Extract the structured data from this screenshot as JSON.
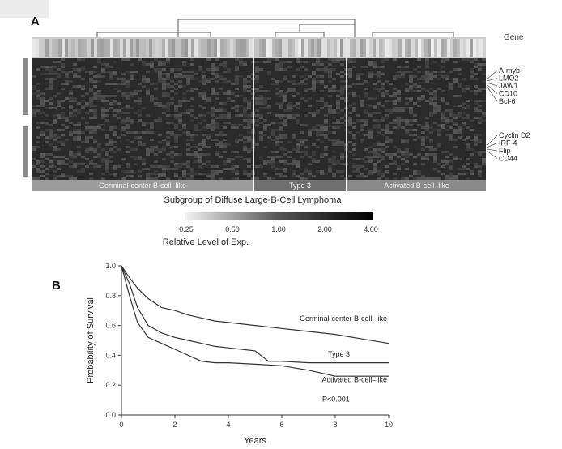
{
  "panel_a": {
    "label": "A",
    "gene_header": "Gene",
    "genes_upper": [
      "A-myb",
      "LMO2",
      "JAW1",
      "CD10",
      "Bcl-6"
    ],
    "genes_lower": [
      "Cyclin D2",
      "IRF-4",
      "Flip",
      "CD44"
    ],
    "subgroups": [
      {
        "label": "Germinal-center B-cell–like"
      },
      {
        "label": "Type 3"
      },
      {
        "label": "Activated B-cell–like"
      }
    ],
    "subgroup_title": "Subgroup of Diffuse Large-B-Cell Lymphoma",
    "colorbar": {
      "ticks": [
        "0.25",
        "0.50",
        "1.00",
        "2.00",
        "4.00"
      ],
      "title": "Relative Level of Exp."
    }
  },
  "chart_data": {
    "type": "line",
    "panel_label": "B",
    "xlabel": "Years",
    "ylabel": "Probability of Survival",
    "xlim": [
      0,
      10
    ],
    "ylim": [
      0,
      1.0
    ],
    "xticks": [
      0,
      2,
      4,
      6,
      8,
      10
    ],
    "yticks": [
      0.0,
      0.2,
      0.4,
      0.6,
      0.8,
      1.0
    ],
    "grid": false,
    "annotation": "P<0.001",
    "series": [
      {
        "name": "Germinal-center B-cell–like",
        "x": [
          0,
          0.3,
          0.6,
          1,
          1.5,
          2,
          2.5,
          3,
          3.5,
          4,
          5,
          6,
          7,
          8,
          9,
          10
        ],
        "y": [
          1.0,
          0.92,
          0.85,
          0.78,
          0.72,
          0.7,
          0.67,
          0.65,
          0.63,
          0.62,
          0.6,
          0.58,
          0.56,
          0.54,
          0.51,
          0.48
        ]
      },
      {
        "name": "Type 3",
        "x": [
          0,
          0.3,
          0.6,
          1,
          1.5,
          2,
          2.5,
          3,
          3.5,
          4,
          5,
          5.5,
          6,
          7,
          8,
          9,
          10
        ],
        "y": [
          1.0,
          0.88,
          0.72,
          0.6,
          0.55,
          0.52,
          0.5,
          0.48,
          0.46,
          0.45,
          0.43,
          0.36,
          0.36,
          0.35,
          0.35,
          0.35,
          0.35
        ]
      },
      {
        "name": "Activated B-cell–like",
        "x": [
          0,
          0.3,
          0.6,
          1,
          1.5,
          2,
          2.5,
          3,
          3.5,
          4,
          5,
          6,
          7,
          8,
          9,
          10
        ],
        "y": [
          1.0,
          0.8,
          0.62,
          0.52,
          0.48,
          0.44,
          0.4,
          0.36,
          0.35,
          0.35,
          0.34,
          0.33,
          0.3,
          0.26,
          0.26,
          0.26
        ]
      }
    ]
  }
}
